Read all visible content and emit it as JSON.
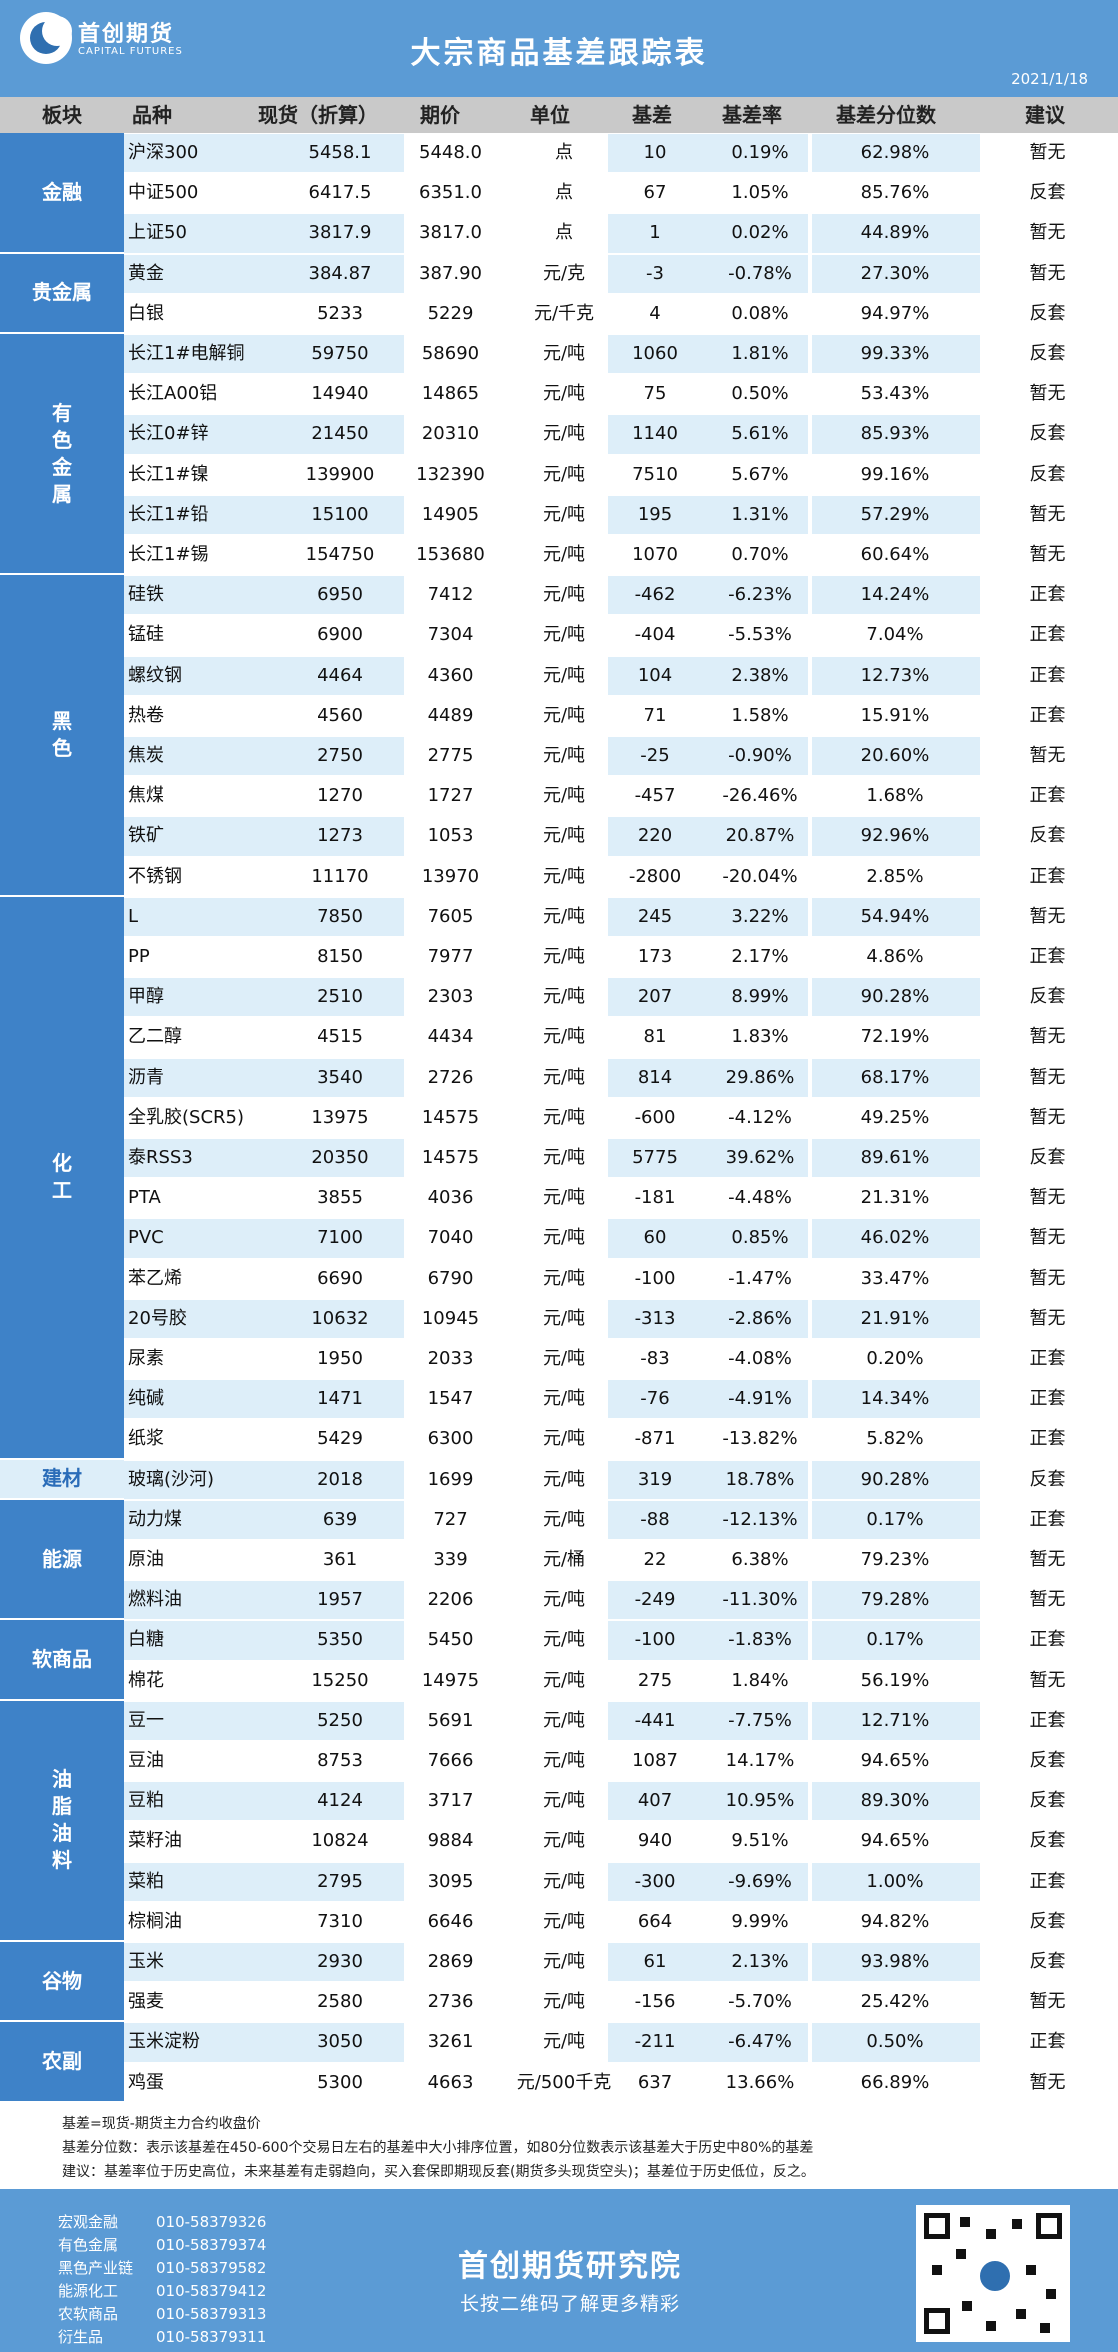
{
  "header": {
    "company_cn": "首创期货",
    "company_en": "CAPITAL FUTURES",
    "title": "大宗商品基差跟踪表",
    "date": "2021/1/18"
  },
  "columns": {
    "sector": "板块",
    "product": "品种",
    "spot": "现货（折算）",
    "futures": "期价",
    "unit": "单位",
    "basis": "基差",
    "basis_rate": "基差率",
    "percentile": "基差分位数",
    "advice": "建议"
  },
  "sectors": [
    {
      "name": "金融",
      "rows": [
        {
          "product": "沪深300",
          "spot": "5458.1",
          "futures": "5448.0",
          "unit": "点",
          "basis": "10",
          "basis_rate": "0.19%",
          "percentile": "62.98%",
          "advice": "暂无"
        },
        {
          "product": "中证500",
          "spot": "6417.5",
          "futures": "6351.0",
          "unit": "点",
          "basis": "67",
          "basis_rate": "1.05%",
          "percentile": "85.76%",
          "advice": "反套"
        },
        {
          "product": "上证50",
          "spot": "3817.9",
          "futures": "3817.0",
          "unit": "点",
          "basis": "1",
          "basis_rate": "0.02%",
          "percentile": "44.89%",
          "advice": "暂无"
        }
      ]
    },
    {
      "name": "贵金属",
      "rows": [
        {
          "product": "黄金",
          "spot": "384.87",
          "futures": "387.90",
          "unit": "元/克",
          "basis": "-3",
          "basis_rate": "-0.78%",
          "percentile": "27.30%",
          "advice": "暂无"
        },
        {
          "product": "白银",
          "spot": "5233",
          "futures": "5229",
          "unit": "元/千克",
          "basis": "4",
          "basis_rate": "0.08%",
          "percentile": "94.97%",
          "advice": "反套"
        }
      ]
    },
    {
      "name": "有色金属",
      "rows": [
        {
          "product": "长江1#电解铜",
          "spot": "59750",
          "futures": "58690",
          "unit": "元/吨",
          "basis": "1060",
          "basis_rate": "1.81%",
          "percentile": "99.33%",
          "advice": "反套"
        },
        {
          "product": "长江A00铝",
          "spot": "14940",
          "futures": "14865",
          "unit": "元/吨",
          "basis": "75",
          "basis_rate": "0.50%",
          "percentile": "53.43%",
          "advice": "暂无"
        },
        {
          "product": "长江0#锌",
          "spot": "21450",
          "futures": "20310",
          "unit": "元/吨",
          "basis": "1140",
          "basis_rate": "5.61%",
          "percentile": "85.93%",
          "advice": "反套"
        },
        {
          "product": "长江1#镍",
          "spot": "139900",
          "futures": "132390",
          "unit": "元/吨",
          "basis": "7510",
          "basis_rate": "5.67%",
          "percentile": "99.16%",
          "advice": "反套"
        },
        {
          "product": "长江1#铅",
          "spot": "15100",
          "futures": "14905",
          "unit": "元/吨",
          "basis": "195",
          "basis_rate": "1.31%",
          "percentile": "57.29%",
          "advice": "暂无"
        },
        {
          "product": "长江1#锡",
          "spot": "154750",
          "futures": "153680",
          "unit": "元/吨",
          "basis": "1070",
          "basis_rate": "0.70%",
          "percentile": "60.64%",
          "advice": "暂无"
        }
      ]
    },
    {
      "name": "黑色",
      "rows": [
        {
          "product": "硅铁",
          "spot": "6950",
          "futures": "7412",
          "unit": "元/吨",
          "basis": "-462",
          "basis_rate": "-6.23%",
          "percentile": "14.24%",
          "advice": "正套"
        },
        {
          "product": "锰硅",
          "spot": "6900",
          "futures": "7304",
          "unit": "元/吨",
          "basis": "-404",
          "basis_rate": "-5.53%",
          "percentile": "7.04%",
          "advice": "正套"
        },
        {
          "product": "螺纹钢",
          "spot": "4464",
          "futures": "4360",
          "unit": "元/吨",
          "basis": "104",
          "basis_rate": "2.38%",
          "percentile": "12.73%",
          "advice": "正套"
        },
        {
          "product": "热卷",
          "spot": "4560",
          "futures": "4489",
          "unit": "元/吨",
          "basis": "71",
          "basis_rate": "1.58%",
          "percentile": "15.91%",
          "advice": "正套"
        },
        {
          "product": "焦炭",
          "spot": "2750",
          "futures": "2775",
          "unit": "元/吨",
          "basis": "-25",
          "basis_rate": "-0.90%",
          "percentile": "20.60%",
          "advice": "暂无"
        },
        {
          "product": "焦煤",
          "spot": "1270",
          "futures": "1727",
          "unit": "元/吨",
          "basis": "-457",
          "basis_rate": "-26.46%",
          "percentile": "1.68%",
          "advice": "正套"
        },
        {
          "product": "铁矿",
          "spot": "1273",
          "futures": "1053",
          "unit": "元/吨",
          "basis": "220",
          "basis_rate": "20.87%",
          "percentile": "92.96%",
          "advice": "反套"
        },
        {
          "product": "不锈钢",
          "spot": "11170",
          "futures": "13970",
          "unit": "元/吨",
          "basis": "-2800",
          "basis_rate": "-20.04%",
          "percentile": "2.85%",
          "advice": "正套"
        }
      ]
    },
    {
      "name": "化工",
      "rows": [
        {
          "product": "L",
          "spot": "7850",
          "futures": "7605",
          "unit": "元/吨",
          "basis": "245",
          "basis_rate": "3.22%",
          "percentile": "54.94%",
          "advice": "暂无"
        },
        {
          "product": "PP",
          "spot": "8150",
          "futures": "7977",
          "unit": "元/吨",
          "basis": "173",
          "basis_rate": "2.17%",
          "percentile": "4.86%",
          "advice": "正套"
        },
        {
          "product": "甲醇",
          "spot": "2510",
          "futures": "2303",
          "unit": "元/吨",
          "basis": "207",
          "basis_rate": "8.99%",
          "percentile": "90.28%",
          "advice": "反套"
        },
        {
          "product": "乙二醇",
          "spot": "4515",
          "futures": "4434",
          "unit": "元/吨",
          "basis": "81",
          "basis_rate": "1.83%",
          "percentile": "72.19%",
          "advice": "暂无"
        },
        {
          "product": "沥青",
          "spot": "3540",
          "futures": "2726",
          "unit": "元/吨",
          "basis": "814",
          "basis_rate": "29.86%",
          "percentile": "68.17%",
          "advice": "暂无"
        },
        {
          "product": "全乳胶(SCR5)",
          "spot": "13975",
          "futures": "14575",
          "unit": "元/吨",
          "basis": "-600",
          "basis_rate": "-4.12%",
          "percentile": "49.25%",
          "advice": "暂无"
        },
        {
          "product": "泰RSS3",
          "spot": "20350",
          "futures": "14575",
          "unit": "元/吨",
          "basis": "5775",
          "basis_rate": "39.62%",
          "percentile": "89.61%",
          "advice": "反套"
        },
        {
          "product": "PTA",
          "spot": "3855",
          "futures": "4036",
          "unit": "元/吨",
          "basis": "-181",
          "basis_rate": "-4.48%",
          "percentile": "21.31%",
          "advice": "暂无"
        },
        {
          "product": "PVC",
          "spot": "7100",
          "futures": "7040",
          "unit": "元/吨",
          "basis": "60",
          "basis_rate": "0.85%",
          "percentile": "46.02%",
          "advice": "暂无"
        },
        {
          "product": "苯乙烯",
          "spot": "6690",
          "futures": "6790",
          "unit": "元/吨",
          "basis": "-100",
          "basis_rate": "-1.47%",
          "percentile": "33.47%",
          "advice": "暂无"
        },
        {
          "product": "20号胶",
          "spot": "10632",
          "futures": "10945",
          "unit": "元/吨",
          "basis": "-313",
          "basis_rate": "-2.86%",
          "percentile": "21.91%",
          "advice": "暂无"
        },
        {
          "product": "尿素",
          "spot": "1950",
          "futures": "2033",
          "unit": "元/吨",
          "basis": "-83",
          "basis_rate": "-4.08%",
          "percentile": "0.20%",
          "advice": "正套"
        },
        {
          "product": "纯碱",
          "spot": "1471",
          "futures": "1547",
          "unit": "元/吨",
          "basis": "-76",
          "basis_rate": "-4.91%",
          "percentile": "14.34%",
          "advice": "正套"
        },
        {
          "product": "纸浆",
          "spot": "5429",
          "futures": "6300",
          "unit": "元/吨",
          "basis": "-871",
          "basis_rate": "-13.82%",
          "percentile": "5.82%",
          "advice": "正套"
        }
      ]
    },
    {
      "name": "建材",
      "rows": [
        {
          "product": "玻璃(沙河)",
          "spot": "2018",
          "futures": "1699",
          "unit": "元/吨",
          "basis": "319",
          "basis_rate": "18.78%",
          "percentile": "90.28%",
          "advice": "反套"
        }
      ]
    },
    {
      "name": "能源",
      "rows": [
        {
          "product": "动力煤",
          "spot": "639",
          "futures": "727",
          "unit": "元/吨",
          "basis": "-88",
          "basis_rate": "-12.13%",
          "percentile": "0.17%",
          "advice": "正套"
        },
        {
          "product": "原油",
          "spot": "361",
          "futures": "339",
          "unit": "元/桶",
          "basis": "22",
          "basis_rate": "6.38%",
          "percentile": "79.23%",
          "advice": "暂无"
        },
        {
          "product": "燃料油",
          "spot": "1957",
          "futures": "2206",
          "unit": "元/吨",
          "basis": "-249",
          "basis_rate": "-11.30%",
          "percentile": "79.28%",
          "advice": "暂无"
        }
      ]
    },
    {
      "name": "软商品",
      "rows": [
        {
          "product": "白糖",
          "spot": "5350",
          "futures": "5450",
          "unit": "元/吨",
          "basis": "-100",
          "basis_rate": "-1.83%",
          "percentile": "0.17%",
          "advice": "正套"
        },
        {
          "product": "棉花",
          "spot": "15250",
          "futures": "14975",
          "unit": "元/吨",
          "basis": "275",
          "basis_rate": "1.84%",
          "percentile": "56.19%",
          "advice": "暂无"
        }
      ]
    },
    {
      "name": "油脂油料",
      "rows": [
        {
          "product": "豆一",
          "spot": "5250",
          "futures": "5691",
          "unit": "元/吨",
          "basis": "-441",
          "basis_rate": "-7.75%",
          "percentile": "12.71%",
          "advice": "正套"
        },
        {
          "product": "豆油",
          "spot": "8753",
          "futures": "7666",
          "unit": "元/吨",
          "basis": "1087",
          "basis_rate": "14.17%",
          "percentile": "94.65%",
          "advice": "反套"
        },
        {
          "product": "豆粕",
          "spot": "4124",
          "futures": "3717",
          "unit": "元/吨",
          "basis": "407",
          "basis_rate": "10.95%",
          "percentile": "89.30%",
          "advice": "反套"
        },
        {
          "product": "菜籽油",
          "spot": "10824",
          "futures": "9884",
          "unit": "元/吨",
          "basis": "940",
          "basis_rate": "9.51%",
          "percentile": "94.65%",
          "advice": "反套"
        },
        {
          "product": "菜粕",
          "spot": "2795",
          "futures": "3095",
          "unit": "元/吨",
          "basis": "-300",
          "basis_rate": "-9.69%",
          "percentile": "1.00%",
          "advice": "正套"
        },
        {
          "product": "棕榈油",
          "spot": "7310",
          "futures": "6646",
          "unit": "元/吨",
          "basis": "664",
          "basis_rate": "9.99%",
          "percentile": "94.82%",
          "advice": "反套"
        }
      ]
    },
    {
      "name": "谷物",
      "rows": [
        {
          "product": "玉米",
          "spot": "2930",
          "futures": "2869",
          "unit": "元/吨",
          "basis": "61",
          "basis_rate": "2.13%",
          "percentile": "93.98%",
          "advice": "反套"
        },
        {
          "product": "强麦",
          "spot": "2580",
          "futures": "2736",
          "unit": "元/吨",
          "basis": "-156",
          "basis_rate": "-5.70%",
          "percentile": "25.42%",
          "advice": "暂无"
        }
      ]
    },
    {
      "name": "农副",
      "rows": [
        {
          "product": "玉米淀粉",
          "spot": "3050",
          "futures": "3261",
          "unit": "元/吨",
          "basis": "-211",
          "basis_rate": "-6.47%",
          "percentile": "0.50%",
          "advice": "正套"
        },
        {
          "product": "鸡蛋",
          "spot": "5300",
          "futures": "4663",
          "unit": "元/500千克",
          "basis": "637",
          "basis_rate": "13.66%",
          "percentile": "66.89%",
          "advice": "暂无"
        }
      ]
    }
  ],
  "notes": [
    "基差=现货-期货主力合约收盘价",
    "基差分位数：表示该基差在450-600个交易日左右的基差中大小排序位置，如80分位数表示该基差大于历史中80%的基差",
    "建议：基差率位于历史高位，未来基差有走弱趋向，买入套保即期现反套(期货多头现货空头)；基差位于历史低位，反之。"
  ],
  "footer": {
    "contacts": [
      {
        "name": "宏观金融",
        "phone": "010-58379326"
      },
      {
        "name": "有色金属",
        "phone": "010-58379374"
      },
      {
        "name": "黑色产业链",
        "phone": "010-58379582"
      },
      {
        "name": "能源化工",
        "phone": "010-58379412"
      },
      {
        "name": "农软商品",
        "phone": "010-58379313"
      },
      {
        "name": "衍生品",
        "phone": "010-58379311"
      }
    ],
    "title": "首创期货研究院",
    "subtitle": "长按二维码了解更多精彩"
  },
  "colors": {
    "header_blue": "#5b9bd5",
    "sector_blue": "#3e82c8",
    "highlight": "#ddeef9",
    "column_header_gray": "#c9c9c9"
  }
}
